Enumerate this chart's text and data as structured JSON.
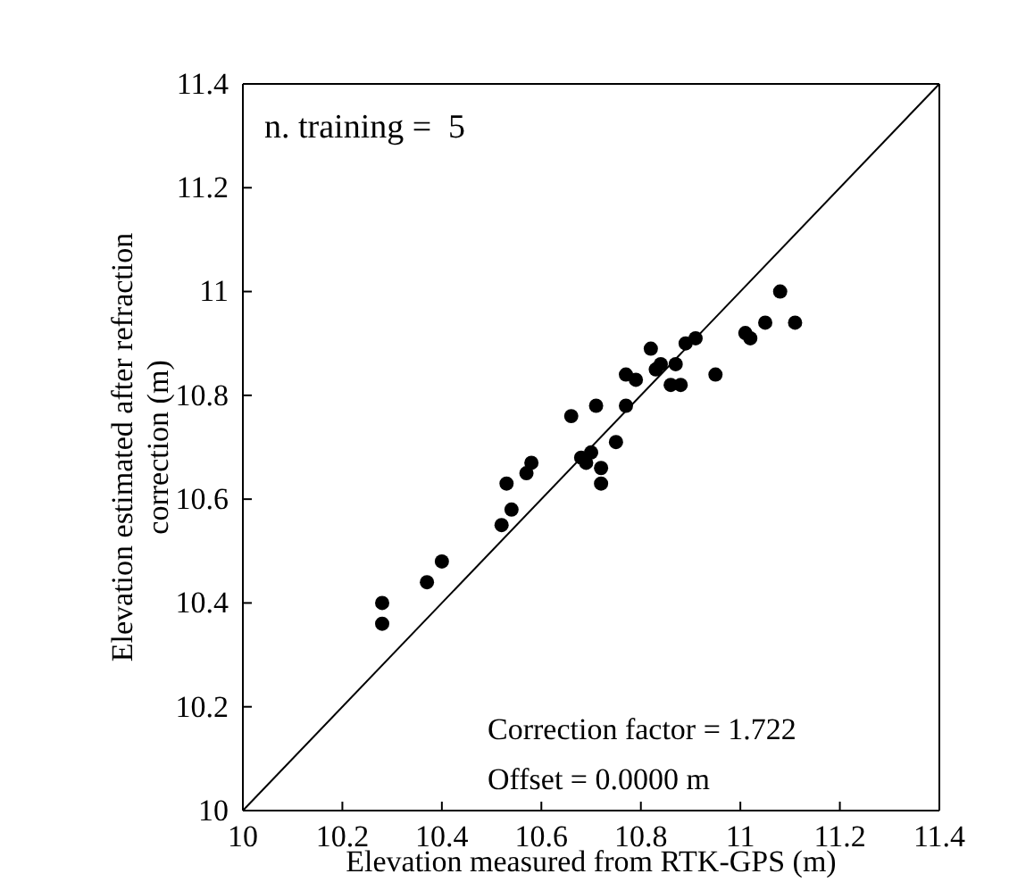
{
  "chart_data": {
    "type": "scatter",
    "xlabel": "Elevation measured from RTK-GPS (m)",
    "ylabel": "Elevation estimated after refraction correction (m)",
    "xlim": [
      10,
      11.4
    ],
    "ylim": [
      10,
      11.4
    ],
    "xticks": [
      10,
      10.2,
      10.4,
      10.6,
      10.8,
      11,
      11.2,
      11.4
    ],
    "yticks": [
      10,
      10.2,
      10.4,
      10.6,
      10.8,
      11,
      11.2,
      11.4
    ],
    "grid": false,
    "marker": "circle",
    "annotations": [
      "n. training =  5",
      "Correction factor = 1.722",
      "Offset = 0.0000 m"
    ],
    "series": [
      {
        "color": "#000000",
        "x": [
          10.28,
          10.28,
          10.37,
          10.4,
          10.52,
          10.53,
          10.54,
          10.57,
          10.58,
          10.66,
          10.68,
          10.69,
          10.7,
          10.71,
          10.72,
          10.72,
          10.75,
          10.77,
          10.77,
          10.79,
          10.82,
          10.83,
          10.84,
          10.86,
          10.87,
          10.88,
          10.89,
          10.91,
          10.95,
          11.01,
          11.02,
          11.05,
          11.08,
          11.11
        ],
        "values": [
          10.4,
          10.36,
          10.44,
          10.48,
          10.55,
          10.63,
          10.58,
          10.65,
          10.67,
          10.76,
          10.68,
          10.67,
          10.69,
          10.78,
          10.66,
          10.63,
          10.71,
          10.78,
          10.84,
          10.83,
          10.89,
          10.85,
          10.86,
          10.82,
          10.86,
          10.82,
          10.9,
          10.91,
          10.84,
          10.92,
          10.91,
          10.94,
          11.0,
          10.94
        ]
      },
      {
        "type": "line",
        "marker": "none",
        "color": "#000000",
        "x": [
          10,
          11.4
        ],
        "values": [
          10,
          11.4
        ]
      }
    ]
  }
}
